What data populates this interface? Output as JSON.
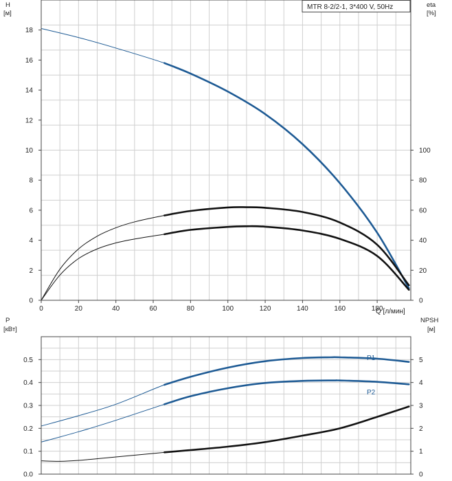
{
  "chart_data": [
    {
      "type": "line",
      "legend": "MTR 8-2/2-1, 3*400 V, 50Hz",
      "xlabel": "Q [л/мин]",
      "ylabel_left": "H",
      "ylabel_left_unit": "[м]",
      "ylabel_right": "eta",
      "ylabel_right_unit": "[%]",
      "xlim": [
        0,
        198
      ],
      "xticks": [
        0,
        20,
        40,
        60,
        80,
        100,
        120,
        140,
        160,
        180
      ],
      "ylim_left": [
        0,
        20
      ],
      "yticks_left": [
        0,
        2,
        4,
        6,
        8,
        10,
        12,
        14,
        16,
        18
      ],
      "ylim_right": [
        0,
        200
      ],
      "yticks_right": [
        0,
        20,
        40,
        60,
        80,
        100
      ],
      "grid": true,
      "series": [
        {
          "axis": "left",
          "color": "#1d5a94",
          "bold_from": 66,
          "x": [
            0,
            20,
            40,
            66,
            80,
            100,
            120,
            140,
            160,
            180,
            197
          ],
          "y": [
            18.1,
            17.5,
            16.8,
            15.8,
            15.1,
            13.9,
            12.4,
            10.4,
            7.8,
            4.5,
            0.8
          ]
        },
        {
          "axis": "right",
          "color": "#111111",
          "bold_from": 66,
          "x": [
            0,
            10,
            20,
            30,
            40,
            50,
            66,
            80,
            100,
            110,
            120,
            140,
            160,
            180,
            197
          ],
          "y": [
            0,
            20.7,
            34.2,
            42.7,
            48.3,
            52.2,
            56.5,
            59.5,
            61.8,
            62.0,
            61.6,
            58.8,
            51.8,
            37.0,
            10.0
          ]
        },
        {
          "axis": "right",
          "color": "#111111",
          "bold_from": 66,
          "x": [
            0,
            10,
            20,
            30,
            40,
            50,
            66,
            80,
            100,
            110,
            120,
            140,
            160,
            180,
            197
          ],
          "y": [
            0,
            16.8,
            27.8,
            34.2,
            38.2,
            40.8,
            44.0,
            46.9,
            48.9,
            49.3,
            49.0,
            46.5,
            40.9,
            29.5,
            7.0
          ]
        }
      ]
    },
    {
      "type": "line",
      "ylabel_left": "P",
      "ylabel_left_unit": "[кВт]",
      "ylabel_right": "NPSH",
      "ylabel_right_unit": "[м]",
      "xlim": [
        0,
        198
      ],
      "ylim_left": [
        0,
        0.6
      ],
      "yticks_left": [
        "0.0",
        "0.1",
        "0.2",
        "0.3",
        "0.4",
        "0.5"
      ],
      "ylim_right": [
        0,
        6
      ],
      "yticks_right": [
        0,
        1,
        2,
        3,
        4,
        5
      ],
      "grid": true,
      "series": [
        {
          "name": "P1",
          "axis": "left",
          "color": "#1d5a94",
          "bold_from": 66,
          "x": [
            0,
            20,
            40,
            66,
            80,
            100,
            120,
            140,
            155,
            160,
            180,
            197
          ],
          "y": [
            0.21,
            0.255,
            0.305,
            0.39,
            0.425,
            0.465,
            0.493,
            0.507,
            0.51,
            0.51,
            0.504,
            0.49
          ]
        },
        {
          "name": "P2",
          "axis": "left",
          "color": "#1d5a94",
          "bold_from": 66,
          "x": [
            0,
            20,
            40,
            66,
            80,
            100,
            120,
            140,
            157,
            160,
            180,
            197
          ],
          "y": [
            0.14,
            0.185,
            0.235,
            0.305,
            0.34,
            0.375,
            0.398,
            0.407,
            0.409,
            0.409,
            0.403,
            0.392
          ]
        },
        {
          "axis": "right",
          "color": "#111111",
          "bold_from": 66,
          "x": [
            0,
            10,
            20,
            40,
            66,
            80,
            100,
            120,
            140,
            160,
            180,
            197
          ],
          "y": [
            0.58,
            0.56,
            0.6,
            0.75,
            0.95,
            1.05,
            1.2,
            1.4,
            1.68,
            2.0,
            2.5,
            2.95
          ]
        }
      ]
    }
  ]
}
